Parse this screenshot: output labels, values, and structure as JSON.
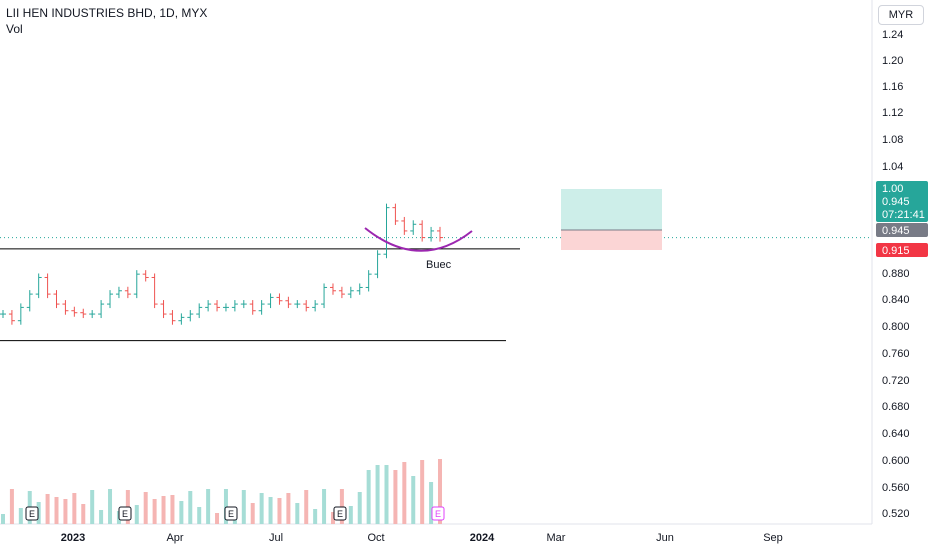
{
  "header": {
    "title": "LII HEN INDUSTRIES BHD, 1D, MYX",
    "indicator": "Vol",
    "currency": "MYR"
  },
  "colors": {
    "up": "#26a69a",
    "down": "#ef5350",
    "vol_up": "#a6ddd6",
    "vol_down": "#f5b5b3",
    "curve": "#9c27b0",
    "line": "#000000",
    "profit_zone": "#cdeee9",
    "loss_zone": "#fbd5d5",
    "target_badge": "#26a69a",
    "price_badge": "#787b86",
    "stop_badge": "#f23645"
  },
  "chart_data": {
    "type": "candlestick",
    "y_axis": {
      "ticks": [
        "1.24",
        "1.20",
        "1.16",
        "1.12",
        "1.08",
        "1.04",
        "1.00",
        "0.945",
        "0.915",
        "0.880",
        "0.840",
        "0.800",
        "0.760",
        "0.720",
        "0.680",
        "0.640",
        "0.600",
        "0.560",
        "0.520"
      ]
    },
    "x_axis": {
      "ticks": [
        "2023",
        "Apr",
        "Jul",
        "Oct",
        "2024",
        "Mar",
        "Jun",
        "Sep"
      ]
    },
    "price_series": [
      {
        "date": "2022-11",
        "price": 0.83
      },
      {
        "date": "2022-11",
        "price": 0.82
      },
      {
        "date": "2022-12",
        "price": 0.84
      },
      {
        "date": "2022-12",
        "price": 0.86
      },
      {
        "date": "2022-12",
        "price": 0.885
      },
      {
        "date": "2022-12",
        "price": 0.86
      },
      {
        "date": "2023-01",
        "price": 0.845
      },
      {
        "date": "2023-01",
        "price": 0.835
      },
      {
        "date": "2023-01",
        "price": 0.832
      },
      {
        "date": "2023-01",
        "price": 0.83
      },
      {
        "date": "2023-01",
        "price": 0.83
      },
      {
        "date": "2023-02",
        "price": 0.845
      },
      {
        "date": "2023-02",
        "price": 0.86
      },
      {
        "date": "2023-02",
        "price": 0.865
      },
      {
        "date": "2023-02",
        "price": 0.86
      },
      {
        "date": "2023-03",
        "price": 0.89
      },
      {
        "date": "2023-03",
        "price": 0.885
      },
      {
        "date": "2023-03",
        "price": 0.845
      },
      {
        "date": "2023-03",
        "price": 0.83
      },
      {
        "date": "2023-03",
        "price": 0.82
      },
      {
        "date": "2023-04",
        "price": 0.825
      },
      {
        "date": "2023-04",
        "price": 0.83
      },
      {
        "date": "2023-04",
        "price": 0.84
      },
      {
        "date": "2023-05",
        "price": 0.845
      },
      {
        "date": "2023-05",
        "price": 0.84
      },
      {
        "date": "2023-05",
        "price": 0.84
      },
      {
        "date": "2023-06",
        "price": 0.845
      },
      {
        "date": "2023-06",
        "price": 0.845
      },
      {
        "date": "2023-06",
        "price": 0.835
      },
      {
        "date": "2023-06",
        "price": 0.845
      },
      {
        "date": "2023-07",
        "price": 0.855
      },
      {
        "date": "2023-07",
        "price": 0.85
      },
      {
        "date": "2023-07",
        "price": 0.845
      },
      {
        "date": "2023-08",
        "price": 0.845
      },
      {
        "date": "2023-08",
        "price": 0.84
      },
      {
        "date": "2023-08",
        "price": 0.845
      },
      {
        "date": "2023-09",
        "price": 0.87
      },
      {
        "date": "2023-09",
        "price": 0.865
      },
      {
        "date": "2023-09",
        "price": 0.86
      },
      {
        "date": "2023-09",
        "price": 0.865
      },
      {
        "date": "2023-10",
        "price": 0.87
      },
      {
        "date": "2023-10",
        "price": 0.89
      },
      {
        "date": "2023-10",
        "price": 0.92
      },
      {
        "date": "2023-10",
        "price": 0.99
      },
      {
        "date": "2023-10",
        "price": 0.97
      },
      {
        "date": "2023-11",
        "price": 0.955
      },
      {
        "date": "2023-11",
        "price": 0.965
      },
      {
        "date": "2023-11",
        "price": 0.945
      },
      {
        "date": "2023-11",
        "price": 0.955
      },
      {
        "date": "2023-11",
        "price": 0.945
      }
    ],
    "volume_events": [
      "E",
      "E",
      "E",
      "E",
      "E"
    ],
    "annotations": {
      "curve_label": "Buec",
      "target_price": "1.00",
      "entry_price": "0.945",
      "countdown": "07:21:41",
      "last_price": "0.945",
      "stop_price": "0.915"
    },
    "support_level": 0.79,
    "resistance_level": 0.928,
    "grid": false,
    "legend": "none"
  }
}
